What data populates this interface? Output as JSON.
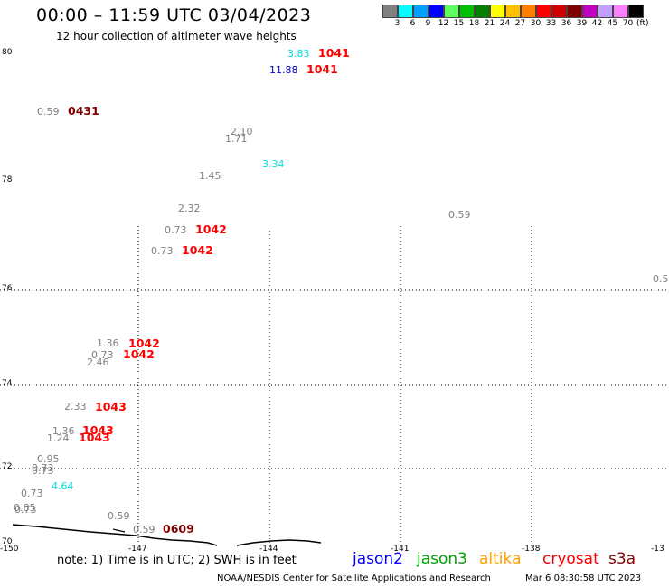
{
  "title": "00:00 – 11:59 UTC 03/04/2023",
  "subtitle": "12 hour collection of altimeter wave heights",
  "colorbar": {
    "labels": [
      "3",
      "6",
      "9",
      "12",
      "15",
      "18",
      "21",
      "24",
      "27",
      "30",
      "33",
      "36",
      "39",
      "42",
      "45",
      "70"
    ],
    "unit": "(ft)",
    "colors": [
      "#808080",
      "#00ffff",
      "#00a0ff",
      "#0000ff",
      "#60ff60",
      "#00c000",
      "#008000",
      "#ffff00",
      "#ffc000",
      "#ff8000",
      "#ff0000",
      "#d00000",
      "#800000",
      "#c000c0",
      "#c0a0ff",
      "#ff80ff",
      "#000000"
    ]
  },
  "axes": {
    "lat_labels": [
      "80",
      "78",
      "76",
      "74",
      "72",
      "70"
    ],
    "lon_labels": [
      "-150",
      "-147",
      "-144",
      "-141",
      "-138",
      "-13"
    ]
  },
  "observations": [
    {
      "value": "3.83",
      "color": "#00e0e0"
    },
    {
      "value": "11.88",
      "color": "#0000c0"
    },
    {
      "value": "0.59",
      "color": "#808080"
    },
    {
      "value": "2.10",
      "color": "#808080"
    },
    {
      "value": "1.71",
      "color": "#808080"
    },
    {
      "value": "3.34",
      "color": "#00e0e0"
    },
    {
      "value": "1.45",
      "color": "#808080"
    },
    {
      "value": "0.59",
      "color": "#808080"
    },
    {
      "value": "2.32",
      "color": "#808080"
    },
    {
      "value": "0.73",
      "color": "#808080"
    },
    {
      "value": "0.73",
      "color": "#808080"
    },
    {
      "value": "0.5",
      "color": "#808080"
    },
    {
      "value": "1.36",
      "color": "#808080"
    },
    {
      "value": "0.73",
      "color": "#808080"
    },
    {
      "value": "2.46",
      "color": "#808080"
    },
    {
      "value": "2.33",
      "color": "#808080"
    },
    {
      "value": "1.36",
      "color": "#808080"
    },
    {
      "value": "1.24",
      "color": "#808080"
    },
    {
      "value": "0.95",
      "color": "#808080"
    },
    {
      "value": "0.73",
      "color": "#808080"
    },
    {
      "value": "0.73",
      "color": "#808080"
    },
    {
      "value": "4.64",
      "color": "#00e0e0"
    },
    {
      "value": "0.73",
      "color": "#808080"
    },
    {
      "value": "0.85",
      "color": "#808080"
    },
    {
      "value": "0.73",
      "color": "#808080"
    },
    {
      "value": "0.59",
      "color": "#808080"
    },
    {
      "value": "0.59",
      "color": "#808080"
    }
  ],
  "orbit_labels": [
    {
      "label": "1041",
      "color": "#ff0000"
    },
    {
      "label": "1041",
      "color": "#ff0000"
    },
    {
      "label": "0431",
      "color": "#800000"
    },
    {
      "label": "1042",
      "color": "#ff0000"
    },
    {
      "label": "1042",
      "color": "#ff0000"
    },
    {
      "label": "1042",
      "color": "#ff0000"
    },
    {
      "label": "1042",
      "color": "#ff0000"
    },
    {
      "label": "1043",
      "color": "#ff0000"
    },
    {
      "label": "1043",
      "color": "#ff0000"
    },
    {
      "label": "1043",
      "color": "#ff0000"
    },
    {
      "label": "0609",
      "color": "#800000"
    }
  ],
  "footer": {
    "note": "note:  1) Time is in UTC;  2) SWH is in feet",
    "satellites": [
      {
        "name": "jason2",
        "color": "#0000ff"
      },
      {
        "name": "jason3",
        "color": "#00a000"
      },
      {
        "name": "altika",
        "color": "#ffa000"
      },
      {
        "name": "cryosat",
        "color": "#ff0000"
      },
      {
        "name": "s3a",
        "color": "#800000"
      }
    ],
    "credit": "NOAA/NESDIS Center for Satellite Applications and Research",
    "timestamp": "Mar  6 08:30:58 UTC 2023"
  }
}
